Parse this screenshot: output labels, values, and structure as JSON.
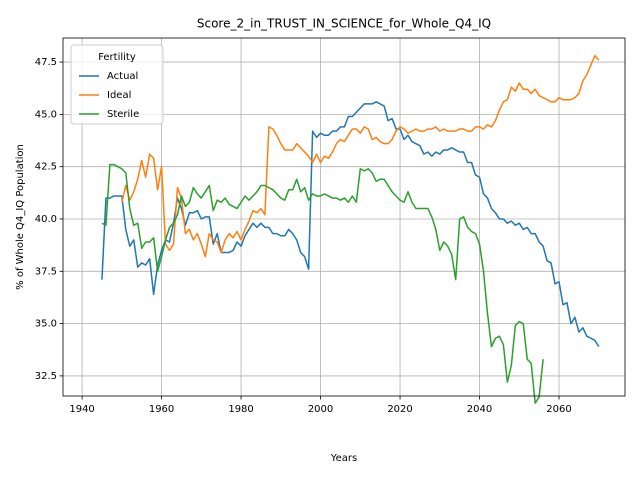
{
  "chart_data": {
    "type": "line",
    "title": "Score_2_in_TRUST_IN_SCIENCE_for_Whole_Q4_IQ",
    "xlabel": "Years",
    "ylabel": "% of Whole Q4_IQ Population",
    "legend_title": "Fertility",
    "legend": "upper left",
    "grid": true,
    "x": [
      1945,
      1946,
      1947,
      1948,
      1949,
      1950,
      1951,
      1952,
      1953,
      1954,
      1955,
      1956,
      1957,
      1958,
      1959,
      1960,
      1961,
      1962,
      1963,
      1964,
      1965,
      1966,
      1967,
      1968,
      1969,
      1970,
      1971,
      1972,
      1973,
      1974,
      1975,
      1976,
      1977,
      1978,
      1979,
      1980,
      1981,
      1982,
      1983,
      1984,
      1985,
      1986,
      1987,
      1988,
      1989,
      1990,
      1991,
      1992,
      1993,
      1994,
      1995,
      1996,
      1997,
      1998,
      1999,
      2000,
      2001,
      2002,
      2003,
      2004,
      2005,
      2006,
      2007,
      2008,
      2009,
      2010,
      2011,
      2012,
      2013,
      2014,
      2015,
      2016,
      2017,
      2018,
      2019,
      2020,
      2021,
      2022,
      2023,
      2024,
      2025,
      2026,
      2027,
      2028,
      2029,
      2030,
      2031,
      2032,
      2033,
      2034,
      2035,
      2036,
      2037,
      2038,
      2039,
      2040,
      2041,
      2042,
      2043,
      2044,
      2045,
      2046,
      2047,
      2048,
      2049,
      2050,
      2051,
      2052,
      2053,
      2054,
      2055,
      2056,
      2057,
      2058,
      2059,
      2060,
      2061,
      2062,
      2063,
      2064,
      2065,
      2066,
      2067,
      2068,
      2069,
      2070
    ],
    "series": [
      {
        "name": "Actual",
        "color": "#1f77b4",
        "values": [
          37.1,
          41.0,
          41.0,
          41.1,
          41.1,
          41.1,
          39.5,
          38.7,
          39.0,
          37.7,
          37.9,
          37.8,
          38.1,
          36.4,
          37.8,
          38.5,
          39.0,
          38.9,
          39.8,
          41.0,
          40.5,
          39.7,
          40.3,
          40.3,
          40.4,
          40.0,
          40.1,
          40.1,
          38.8,
          39.3,
          38.4,
          38.4,
          38.4,
          38.5,
          38.9,
          38.7,
          39.2,
          39.5,
          39.8,
          39.6,
          39.8,
          39.6,
          39.6,
          39.3,
          39.3,
          39.2,
          39.2,
          39.5,
          39.3,
          39.0,
          38.4,
          38.2,
          37.6,
          44.2,
          43.9,
          44.1,
          44.0,
          44.0,
          44.2,
          44.2,
          44.4,
          44.4,
          44.9,
          44.9,
          45.1,
          45.3,
          45.5,
          45.5,
          45.5,
          45.6,
          45.5,
          45.4,
          44.7,
          44.8,
          44.3,
          44.3,
          43.8,
          44.0,
          43.7,
          43.6,
          43.5,
          43.1,
          43.2,
          43.0,
          43.2,
          43.1,
          43.3,
          43.3,
          43.4,
          43.3,
          43.2,
          43.2,
          42.7,
          42.7,
          42.1,
          42.0,
          41.2,
          41.0,
          40.5,
          40.3,
          40.0,
          40.0,
          39.8,
          39.9,
          39.7,
          39.8,
          39.5,
          39.6,
          39.3,
          39.3,
          38.9,
          38.7,
          38.0,
          37.9,
          36.9,
          37.0,
          35.9,
          36.0,
          35.0,
          35.3,
          34.6,
          34.8,
          34.4,
          34.3,
          34.2,
          33.9
        ]
      },
      {
        "name": "Ideal",
        "color": "#ff7f0e",
        "values": [
          null,
          null,
          null,
          null,
          null,
          40.8,
          41.6,
          40.9,
          41.3,
          41.9,
          42.8,
          42.0,
          43.1,
          42.9,
          41.4,
          42.5,
          38.8,
          38.5,
          38.8,
          41.5,
          41.0,
          39.3,
          39.5,
          39.0,
          39.3,
          38.8,
          38.2,
          39.3,
          39.0,
          38.9,
          38.4,
          39.0,
          39.3,
          39.1,
          39.4,
          39.0,
          39.5,
          39.9,
          40.4,
          40.3,
          40.5,
          40.2,
          44.4,
          44.3,
          44.0,
          43.6,
          43.3,
          43.3,
          43.3,
          43.6,
          43.4,
          43.2,
          43.0,
          42.7,
          43.1,
          42.7,
          43.0,
          42.9,
          43.2,
          43.6,
          43.8,
          43.7,
          44.0,
          44.3,
          44.3,
          44.1,
          44.4,
          44.3,
          43.8,
          43.9,
          43.7,
          43.6,
          43.6,
          43.8,
          44.2,
          44.4,
          44.3,
          44.1,
          44.2,
          44.3,
          44.2,
          44.2,
          44.3,
          44.3,
          44.4,
          44.2,
          44.3,
          44.2,
          44.2,
          44.2,
          44.3,
          44.3,
          44.2,
          44.2,
          44.4,
          44.4,
          44.3,
          44.5,
          44.4,
          44.7,
          45.2,
          45.6,
          45.7,
          46.3,
          46.1,
          46.5,
          46.2,
          46.2,
          46.0,
          46.2,
          45.9,
          45.8,
          45.7,
          45.6,
          45.6,
          45.8,
          45.7,
          45.7,
          45.7,
          45.8,
          46.0,
          46.6,
          46.9,
          47.35,
          47.8,
          47.6
        ]
      },
      {
        "name": "Sterile",
        "color": "#2ca02c",
        "values": [
          39.8,
          39.7,
          42.6,
          42.6,
          42.5,
          42.4,
          42.2,
          40.5,
          39.7,
          39.8,
          38.6,
          38.9,
          38.9,
          39.1,
          37.5,
          38.2,
          39.0,
          39.6,
          39.8,
          40.2,
          41.1,
          40.6,
          40.8,
          41.5,
          41.2,
          41.0,
          41.3,
          41.6,
          40.4,
          40.9,
          40.8,
          41.0,
          40.7,
          40.6,
          40.5,
          40.8,
          41.1,
          40.9,
          41.1,
          41.3,
          41.6,
          41.6,
          41.5,
          41.4,
          41.2,
          41.0,
          40.9,
          41.4,
          41.4,
          41.9,
          41.3,
          41.5,
          40.9,
          41.2,
          41.1,
          41.1,
          41.2,
          41.1,
          41.0,
          41.0,
          40.9,
          41.0,
          40.8,
          41.1,
          40.8,
          42.4,
          42.3,
          42.4,
          42.2,
          41.8,
          41.9,
          41.9,
          41.6,
          41.3,
          41.1,
          40.9,
          40.8,
          41.3,
          40.8,
          40.5,
          40.5,
          40.5,
          40.5,
          40.1,
          39.5,
          38.5,
          38.9,
          38.7,
          38.3,
          37.1,
          40.0,
          40.1,
          39.6,
          39.4,
          39.3,
          38.8,
          37.5,
          35.5,
          33.9,
          34.3,
          34.4,
          34.0,
          32.2,
          33.0,
          34.9,
          35.1,
          35.0,
          33.3,
          33.1,
          31.2,
          31.5,
          33.3,
          null,
          null,
          null,
          null,
          null,
          null,
          null,
          null,
          null,
          null,
          null,
          null,
          null,
          null
        ]
      }
    ],
    "xlim": [
      1935.2,
      2076.6
    ],
    "xticks": [
      1940,
      1960,
      1980,
      2000,
      2020,
      2040,
      2060
    ],
    "ylim": [
      31.54,
      48.65
    ],
    "yticks": [
      32.5,
      {
        "value": 35,
        "label": "35.0"
      },
      37.5,
      {
        "value": 40,
        "label": "40.0"
      },
      42.5,
      {
        "value": 45,
        "label": "45.0"
      },
      47.5
    ]
  }
}
